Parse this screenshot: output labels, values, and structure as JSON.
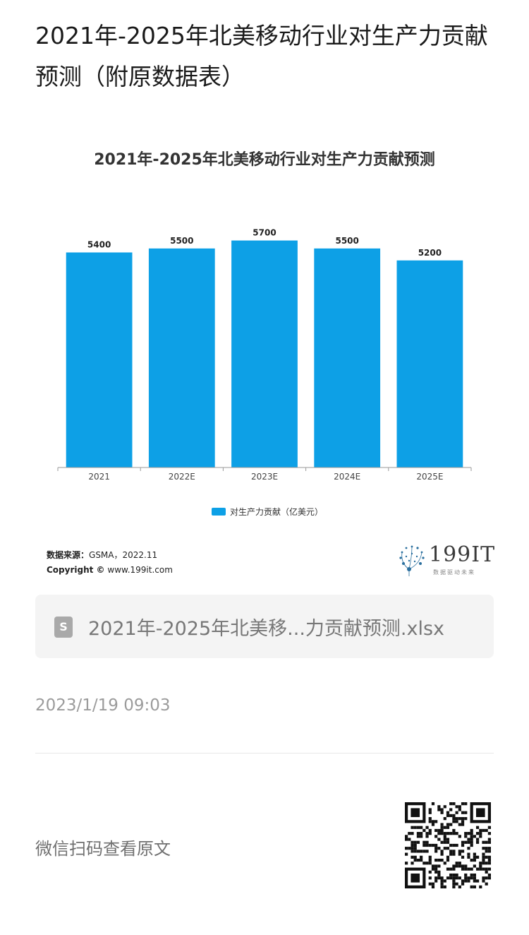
{
  "article": {
    "title": "2021年-2025年北美移动行业对生产力贡献预测（附原数据表）",
    "timestamp": "2023/1/19 09:03",
    "wechat_prompt": "微信扫码查看原文"
  },
  "file": {
    "icon": "spreadsheet-icon",
    "icon_glyph": "S",
    "name": "2021年-2025年北美移...力贡献预测.xlsx"
  },
  "source": {
    "label": "数据来源：",
    "value": "GSMA，2022.11",
    "copyright_label": "Copyright ©",
    "copyright_value": "www.199it.com"
  },
  "logo": {
    "text": "199IT",
    "tagline": "数据驱动未来"
  },
  "chart_data": {
    "type": "bar",
    "title": "2021年-2025年北美移动行业对生产力贡献预测",
    "categories": [
      "2021",
      "2022E",
      "2023E",
      "2024E",
      "2025E"
    ],
    "series": [
      {
        "name": "对生产力贡献（亿美元）",
        "values": [
          5400,
          5500,
          5700,
          5500,
          5200
        ],
        "color": "#0da0e6"
      }
    ],
    "ylim": [
      0,
      6100
    ],
    "grid": false,
    "legend": "bottom-center",
    "data_labels": true
  }
}
